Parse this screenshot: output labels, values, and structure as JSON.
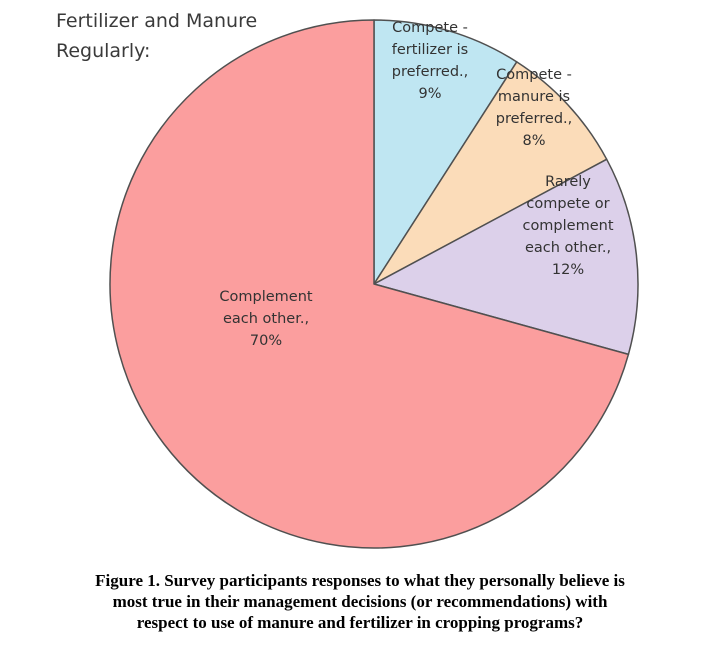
{
  "chart_title": {
    "line1": "Fertilizer and Manure",
    "line2": "Regularly:"
  },
  "chart_data": {
    "type": "pie",
    "slices": [
      {
        "name": "Compete - fertilizer is preferred.",
        "value": 9,
        "color": "#bfe6f2",
        "label_lines": [
          "Compete -",
          "fertilizer is",
          "preferred.,",
          "9%"
        ]
      },
      {
        "name": "Compete - manure is preferred.",
        "value": 8,
        "color": "#fbdcb9",
        "label_lines": [
          "Compete -",
          "manure is",
          "preferred.,",
          "8%"
        ]
      },
      {
        "name": "Rarely compete or complement each other.",
        "value": 12,
        "color": "#dcd0ea",
        "label_lines": [
          "Rarely",
          "compete or",
          "complement",
          "each other.,",
          "12%"
        ]
      },
      {
        "name": "Complement each other.",
        "value": 70,
        "color": "#fb9e9e",
        "label_lines": [
          "Complement",
          "each other.,",
          "70%"
        ]
      }
    ]
  },
  "caption": {
    "line1": "Figure 1.  Survey participants responses to what they personally believe is",
    "line2": "most true in their management decisions (or recommendations) with",
    "line3": "respect to use of manure and fertilizer in cropping programs?"
  }
}
